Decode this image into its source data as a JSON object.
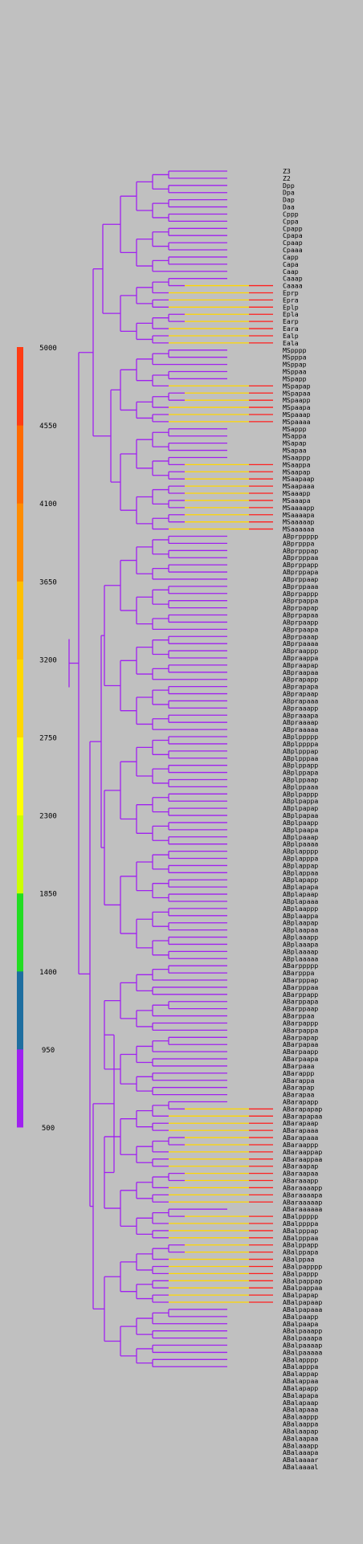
{
  "colors": {
    "background": "#c0c0c0",
    "trunk": "#a020f0",
    "scale_bands": [
      "#a020f0",
      "#1e6ea0",
      "#22dd22",
      "#ccff00",
      "#ffff00",
      "#ffd700",
      "#ffbf00",
      "#ff8c00",
      "#ff6a00",
      "#ff3c14"
    ]
  },
  "scale": {
    "ticks": [
      "5000",
      "4550",
      "4100",
      "3650",
      "3200",
      "2750",
      "2300",
      "1850",
      "1400",
      "950",
      "500"
    ]
  },
  "leaves": [
    "Z3",
    "Z2",
    "Dpp",
    "Dpa",
    "Dap",
    "Daa",
    "Cppp",
    "Cppa",
    "Cpapp",
    "Cpapa",
    "Cpaap",
    "Cpaaa",
    "Capp",
    "Capa",
    "Caap",
    "Caaap",
    "Caaaa",
    "Eprp",
    "Epra",
    "Eplp",
    "Epla",
    "Earp",
    "Eara",
    "Ealp",
    "Eala",
    "MSpppp",
    "MSpppa",
    "MSppap",
    "MSppaa",
    "MSpapp",
    "MSpapap",
    "MSpapaa",
    "MSpaapp",
    "MSpaapa",
    "MSpaaap",
    "MSpaaaa",
    "MSappp",
    "MSappa",
    "MSapap",
    "MSapaa",
    "MSaappp",
    "MSaappa",
    "MSaapap",
    "MSaapaap",
    "MSaapaaa",
    "MSaaapp",
    "MSaaapa",
    "MSaaaapp",
    "MSaaaapa",
    "MSaaaaap",
    "MSaaaaaa",
    "ABprppppp",
    "ABprpppa",
    "ABprpppap",
    "ABprpppaa",
    "ABprppapp",
    "ABprppapa",
    "ABprppaap",
    "ABprppaaa",
    "ABprpappp",
    "ABprpappa",
    "ABprpapap",
    "ABprpapaa",
    "ABprpaapp",
    "ABprpaapa",
    "ABprpaaap",
    "ABprpaaaa",
    "ABpraappp",
    "ABpraappa",
    "ABpraapap",
    "ABpraapaa",
    "ABprapapp",
    "ABprapapa",
    "ABprapaap",
    "ABprapaaa",
    "ABpraaapp",
    "ABpraaapa",
    "ABpraaaap",
    "ABpraaaaa",
    "ABplppppp",
    "ABplppppa",
    "ABplpppap",
    "ABplpppaa",
    "ABplppapp",
    "ABplppapa",
    "ABplppaap",
    "ABplppaaa",
    "ABplpappp",
    "ABplpappa",
    "ABplpapap",
    "ABplpapaa",
    "ABplpaapp",
    "ABplpaapa",
    "ABplpaaap",
    "ABplpaaaa",
    "ABplapppp",
    "ABplapppa",
    "ABplappap",
    "ABplappaa",
    "ABplapapp",
    "ABplapapa",
    "ABplapaap",
    "ABplapaaa",
    "ABplaappp",
    "ABplaappa",
    "ABplaapap",
    "ABplaapaa",
    "ABplaaapp",
    "ABplaaapa",
    "ABplaaaap",
    "ABplaaaaa",
    "ABarppppp",
    "ABarpppa",
    "ABarpppap",
    "ABarpppaa",
    "ABarppapp",
    "ABarppapa",
    "ABarppaap",
    "ABarppaa",
    "ABarpappp",
    "ABarpappa",
    "ABarpapap",
    "ABarpapaa",
    "ABarpaapp",
    "ABarpaapa",
    "ABarpaaa",
    "ABarappp",
    "ABarappa",
    "ABarapap",
    "ABarapaa",
    "ABarapapp",
    "ABarapapap",
    "ABarapapaa",
    "ABarapaap",
    "ABarapaaa",
    "ABarapaaa",
    "ABaraappp",
    "ABaraappap",
    "ABaraappaa",
    "ABaraapap",
    "ABaraapaa",
    "ABaraaapp",
    "ABaraaaapp",
    "ABaraaaapa",
    "ABaraaaaap",
    "ABaraaaaaa",
    "ABalppppp",
    "ABalppppa",
    "ABalpppap",
    "ABalpppaa",
    "ABalppapp",
    "ABalppapa",
    "ABalppaa",
    "ABalpapppp",
    "ABalpappp",
    "ABalpappap",
    "ABalpappaa",
    "ABalpapap",
    "ABalpapaap",
    "ABalpapaaa",
    "ABalpaapp",
    "ABalpaapa",
    "ABalpaaapp",
    "ABalpaaapa",
    "ABalpaaaap",
    "ABalpaaaaa",
    "ABalapppp",
    "ABalapppa",
    "ABalappap",
    "ABalappaa",
    "ABalapapp",
    "ABalapapa",
    "ABalapaap",
    "ABalapaaa",
    "ABalaappp",
    "ABalaappa",
    "ABalaapap",
    "ABalaapaa",
    "ABalaaapp",
    "ABalaaapa",
    "ABalaaaar",
    "ABalaaaal"
  ]
}
